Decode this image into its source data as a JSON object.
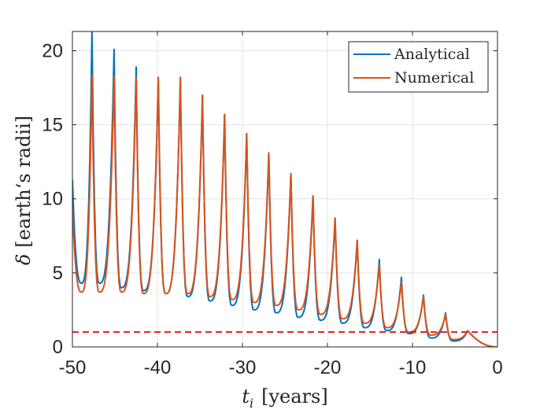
{
  "chart_data": {
    "type": "line",
    "title": "",
    "xlabel": "t_i [years]",
    "xlabel_var": "t",
    "xlabel_sub": "i",
    "xlabel_unit": "[years]",
    "ylabel": "δ [earth's radii]",
    "ylabel_var": "δ",
    "ylabel_unit": "[earth‘s radii]",
    "xlim": [
      -50,
      0
    ],
    "ylim": [
      0,
      21.3
    ],
    "xticks": [
      -50,
      -40,
      -30,
      -20,
      -10,
      0
    ],
    "xtick_labels": [
      "-50",
      "-40",
      "-30",
      "-20",
      "-10",
      "0"
    ],
    "yticks": [
      0,
      5,
      10,
      15,
      20
    ],
    "ytick_labels": [
      "0",
      "5",
      "10",
      "15",
      "20"
    ],
    "grid": true,
    "legend_position": "top-right",
    "threshold_line": {
      "y": 1,
      "color": "#dd1f1f",
      "style": "dashed"
    },
    "series": [
      {
        "name": "Analytical",
        "color": "#0072bd",
        "start_value": 11.3,
        "peaks_x": [
          -47.7,
          -45.1,
          -42.5,
          -39.9,
          -37.3,
          -34.7,
          -32.1,
          -29.5,
          -26.9,
          -24.3,
          -21.7,
          -19.1,
          -16.5,
          -13.9,
          -11.3,
          -8.7,
          -6.1,
          -3.5
        ],
        "peaks_y": [
          21.3,
          20.1,
          18.9,
          18.2,
          18.2,
          17.0,
          15.7,
          14.4,
          13.1,
          11.7,
          10.2,
          8.7,
          7.2,
          5.9,
          4.7,
          3.5,
          2.3,
          1.1
        ],
        "minima_y": [
          4.3,
          4.0,
          3.8,
          3.6,
          3.4,
          3.1,
          2.8,
          2.5,
          2.3,
          2.0,
          1.8,
          1.6,
          1.3,
          1.1,
          0.9,
          0.6,
          0.4,
          0.2
        ],
        "end_value": 0.0
      },
      {
        "name": "Numerical",
        "color": "#d95319",
        "start_value": 9.4,
        "peaks_x": [
          -47.7,
          -45.1,
          -42.5,
          -39.9,
          -37.3,
          -34.7,
          -32.1,
          -29.5,
          -26.9,
          -24.3,
          -21.7,
          -19.1,
          -16.5,
          -13.9,
          -11.3,
          -8.7,
          -6.1,
          -3.5
        ],
        "peaks_y": [
          18.4,
          18.3,
          18.2,
          18.2,
          18.2,
          17.0,
          15.7,
          14.4,
          13.1,
          11.7,
          10.2,
          8.7,
          7.2,
          5.6,
          4.4,
          3.4,
          2.2,
          1.1
        ],
        "minima_y": [
          3.7,
          3.7,
          3.6,
          3.6,
          3.6,
          3.4,
          3.2,
          3.0,
          2.8,
          2.5,
          2.2,
          1.9,
          1.6,
          1.3,
          1.0,
          0.8,
          0.5,
          0.3
        ],
        "end_value": 0.0
      }
    ]
  }
}
